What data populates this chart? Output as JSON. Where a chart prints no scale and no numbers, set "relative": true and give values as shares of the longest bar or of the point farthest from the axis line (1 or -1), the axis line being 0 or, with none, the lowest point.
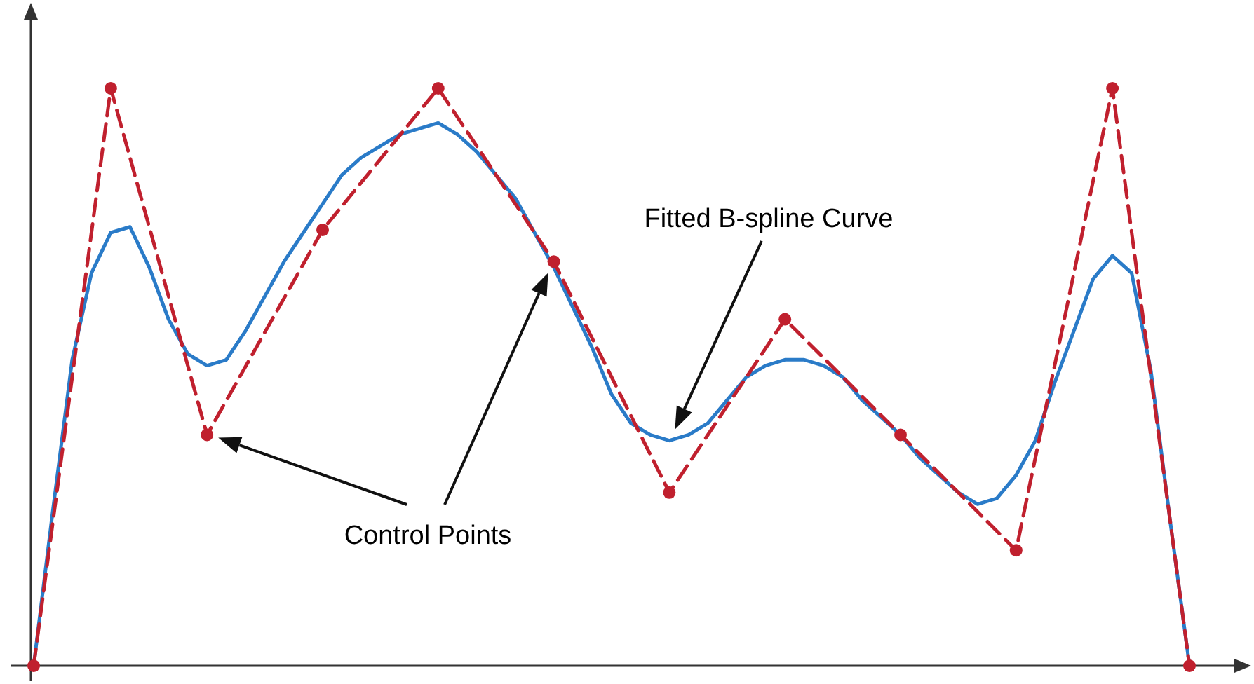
{
  "chart_data": {
    "type": "line",
    "relative": true,
    "categories": [
      null,
      null,
      null,
      null,
      null,
      null,
      null,
      null,
      null,
      null,
      null,
      null,
      null,
      null,
      null,
      null,
      null,
      null,
      null,
      null,
      null,
      null,
      null,
      null,
      null,
      null,
      null,
      null,
      null,
      null,
      null,
      null,
      null,
      null,
      null,
      null,
      null,
      null,
      null,
      null,
      null,
      null,
      null,
      null,
      null,
      null,
      null,
      null,
      null,
      null,
      null,
      null,
      null,
      null,
      null,
      null,
      null,
      null,
      null,
      null,
      null
    ],
    "series": [
      {
        "color": "#2a7bc8",
        "line_style": "solid",
        "marker": "none",
        "values": [
          0,
          0.27,
          0.53,
          0.68,
          0.75,
          0.76,
          0.69,
          0.6,
          0.54,
          0.52,
          0.53,
          0.58,
          0.64,
          0.7,
          0.75,
          0.8,
          0.85,
          0.88,
          0.9,
          0.92,
          0.93,
          0.94,
          0.92,
          0.89,
          0.85,
          0.81,
          0.75,
          0.69,
          0.62,
          0.55,
          0.47,
          0.42,
          0.4,
          0.39,
          0.4,
          0.42,
          0.46,
          0.5,
          0.52,
          0.53,
          0.53,
          0.52,
          0.5,
          0.46,
          0.43,
          0.4,
          0.36,
          0.33,
          0.3,
          0.28,
          0.29,
          0.33,
          0.39,
          0.49,
          0.58,
          0.67,
          0.71,
          0.68,
          0.51,
          0.25,
          0
        ]
      },
      {
        "color": "#c0202e",
        "line_style": "dashed",
        "marker": "circle",
        "values": [
          0,
          null,
          null,
          null,
          1,
          null,
          null,
          null,
          null,
          0.4,
          null,
          null,
          null,
          null,
          null,
          0.755,
          null,
          null,
          null,
          null,
          null,
          1,
          null,
          null,
          null,
          null,
          null,
          0.7,
          null,
          null,
          null,
          null,
          null,
          0.3,
          null,
          null,
          null,
          null,
          null,
          0.6,
          null,
          null,
          null,
          null,
          null,
          0.4,
          null,
          null,
          null,
          null,
          null,
          0.2,
          null,
          null,
          null,
          null,
          1,
          null,
          null,
          null,
          0
        ]
      }
    ],
    "annotations": [
      "Control Points",
      "Fitted B-spline Curve"
    ]
  }
}
